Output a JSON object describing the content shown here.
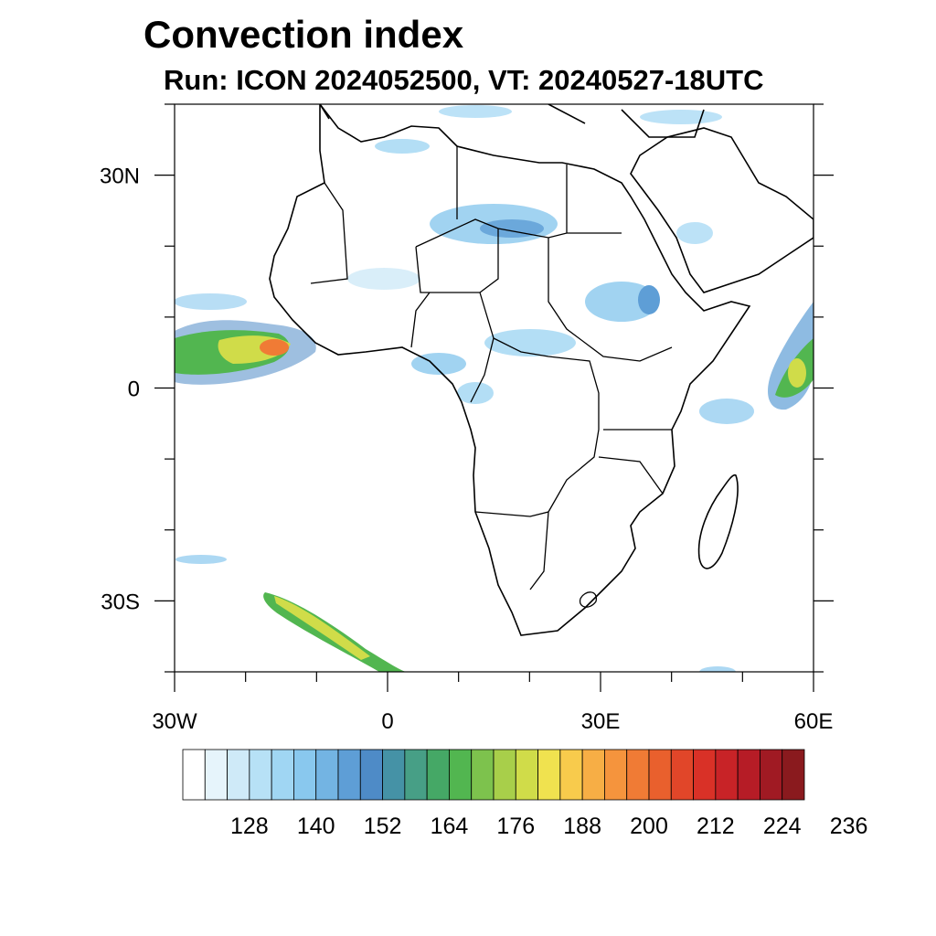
{
  "title": "Convection index",
  "subtitle": "Run: ICON 2024052500,  VT: 20240527-18UTC",
  "map": {
    "lon_range": [
      -30,
      60
    ],
    "lat_range": [
      -40,
      40
    ],
    "lon_ticks": [
      {
        "lon": -30,
        "label": "30W"
      },
      {
        "lon": 0,
        "label": "0"
      },
      {
        "lon": 30,
        "label": "30E"
      },
      {
        "lon": 60,
        "label": "60E"
      }
    ],
    "lat_ticks": [
      {
        "lat": 30,
        "label": "30N"
      },
      {
        "lat": 0,
        "label": "0"
      },
      {
        "lat": -30,
        "label": "30S"
      }
    ],
    "coast_color": "#000000"
  },
  "colorbar": {
    "colors": [
      "#ffffff",
      "#e6f4fb",
      "#cfeaf8",
      "#b7e1f6",
      "#a0d6f3",
      "#89c8ee",
      "#73b4e3",
      "#5e9ed6",
      "#4e8bc7",
      "#4592a6",
      "#479f86",
      "#45a866",
      "#52b650",
      "#7dc24d",
      "#a8cf4a",
      "#d0dc49",
      "#f0e24f",
      "#f8cb4c",
      "#f7ae45",
      "#f5943d",
      "#f07b35",
      "#e9602d",
      "#e14629",
      "#d93127",
      "#c82327",
      "#b61c26",
      "#a01a23",
      "#8a1a1e"
    ],
    "labels": [
      "128",
      "140",
      "152",
      "164",
      "176",
      "188",
      "200",
      "212",
      "224",
      "236"
    ]
  }
}
